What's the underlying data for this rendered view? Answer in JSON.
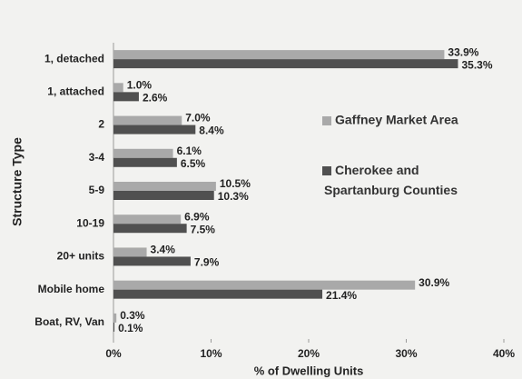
{
  "chart_data": {
    "type": "hbar",
    "xlabel": "% of Dwelling Units",
    "ylabel": "Structure Type",
    "categories": [
      "1, detached",
      "1, attached",
      "2",
      "3-4",
      "5-9",
      "10-19",
      "20+ units",
      "Mobile home",
      "Boat, RV, Van"
    ],
    "series": [
      {
        "name": "Gaffney Market Area",
        "color": "#a9a9a9",
        "values": [
          33.9,
          1.0,
          7.0,
          6.1,
          10.5,
          6.9,
          3.4,
          30.9,
          0.3
        ],
        "value_labels": [
          "33.9%",
          "1.0%",
          "7.0%",
          "6.1%",
          "10.5%",
          "6.9%",
          "3.4%",
          "30.9%",
          "0.3%"
        ]
      },
      {
        "name": "Cherokee and Spartanburg Counties",
        "color": "#505050",
        "values": [
          35.3,
          2.6,
          8.4,
          6.5,
          10.3,
          7.5,
          7.9,
          21.4,
          0.1
        ],
        "value_labels": [
          "35.3%",
          "2.6%",
          "8.4%",
          "6.5%",
          "10.3%",
          "7.5%",
          "7.9%",
          "21.4%",
          "0.1%"
        ]
      }
    ],
    "xlim": [
      0,
      40
    ],
    "xticks": [
      {
        "value": 0,
        "label": "0%"
      },
      {
        "value": 10,
        "label": "10%"
      },
      {
        "value": 20,
        "label": "20%"
      },
      {
        "value": 30,
        "label": "30%"
      },
      {
        "value": 40,
        "label": "40%"
      }
    ]
  }
}
